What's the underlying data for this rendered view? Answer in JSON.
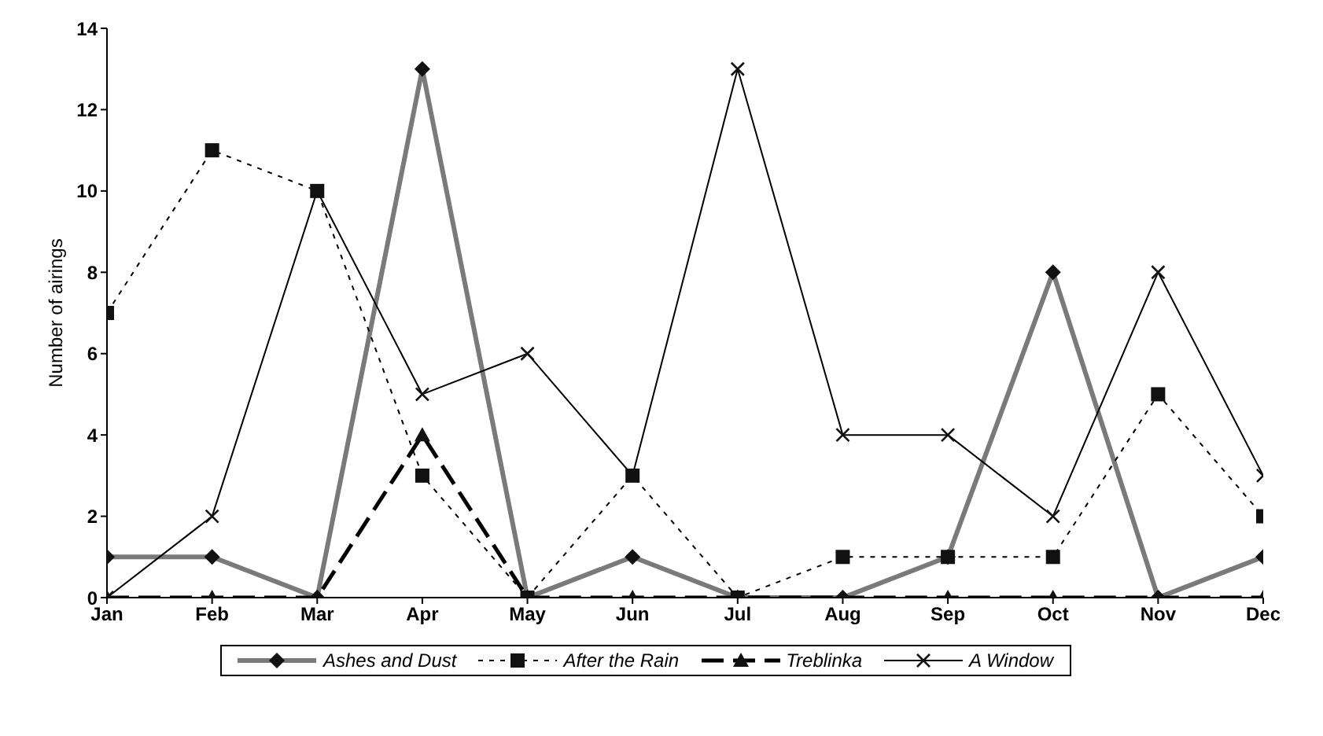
{
  "chart_data": {
    "type": "line",
    "ylabel": "Number of airings",
    "categories": [
      "Jan",
      "Feb",
      "Mar",
      "Apr",
      "May",
      "Jun",
      "Jul",
      "Aug",
      "Sep",
      "Oct",
      "Nov",
      "Dec"
    ],
    "ylim": [
      0,
      14
    ],
    "yticks": [
      0,
      2,
      4,
      6,
      8,
      10,
      12,
      14
    ],
    "legend": "bottom",
    "series": [
      {
        "name": "Ashes and Dust",
        "color": "#7a7a7a",
        "marker": "diamond",
        "line_style": "solid",
        "values": [
          1,
          1,
          0,
          13,
          0,
          1,
          0,
          0,
          1,
          8,
          0,
          1
        ]
      },
      {
        "name": "After the Rain",
        "color": "#000000",
        "marker": "square",
        "line_style": "dotted",
        "values": [
          7,
          11,
          10,
          3,
          0,
          3,
          0,
          1,
          1,
          1,
          5,
          2
        ]
      },
      {
        "name": "Treblinka",
        "color": "#000000",
        "marker": "triangle",
        "line_style": "dashed",
        "values": [
          0,
          0,
          0,
          4,
          0,
          0,
          0,
          0,
          0,
          0,
          0,
          0
        ]
      },
      {
        "name": "A Window",
        "color": "#000000",
        "marker": "cross",
        "line_style": "solid",
        "values": [
          0,
          2,
          10,
          5,
          6,
          3,
          13,
          4,
          4,
          2,
          8,
          3
        ]
      }
    ]
  }
}
